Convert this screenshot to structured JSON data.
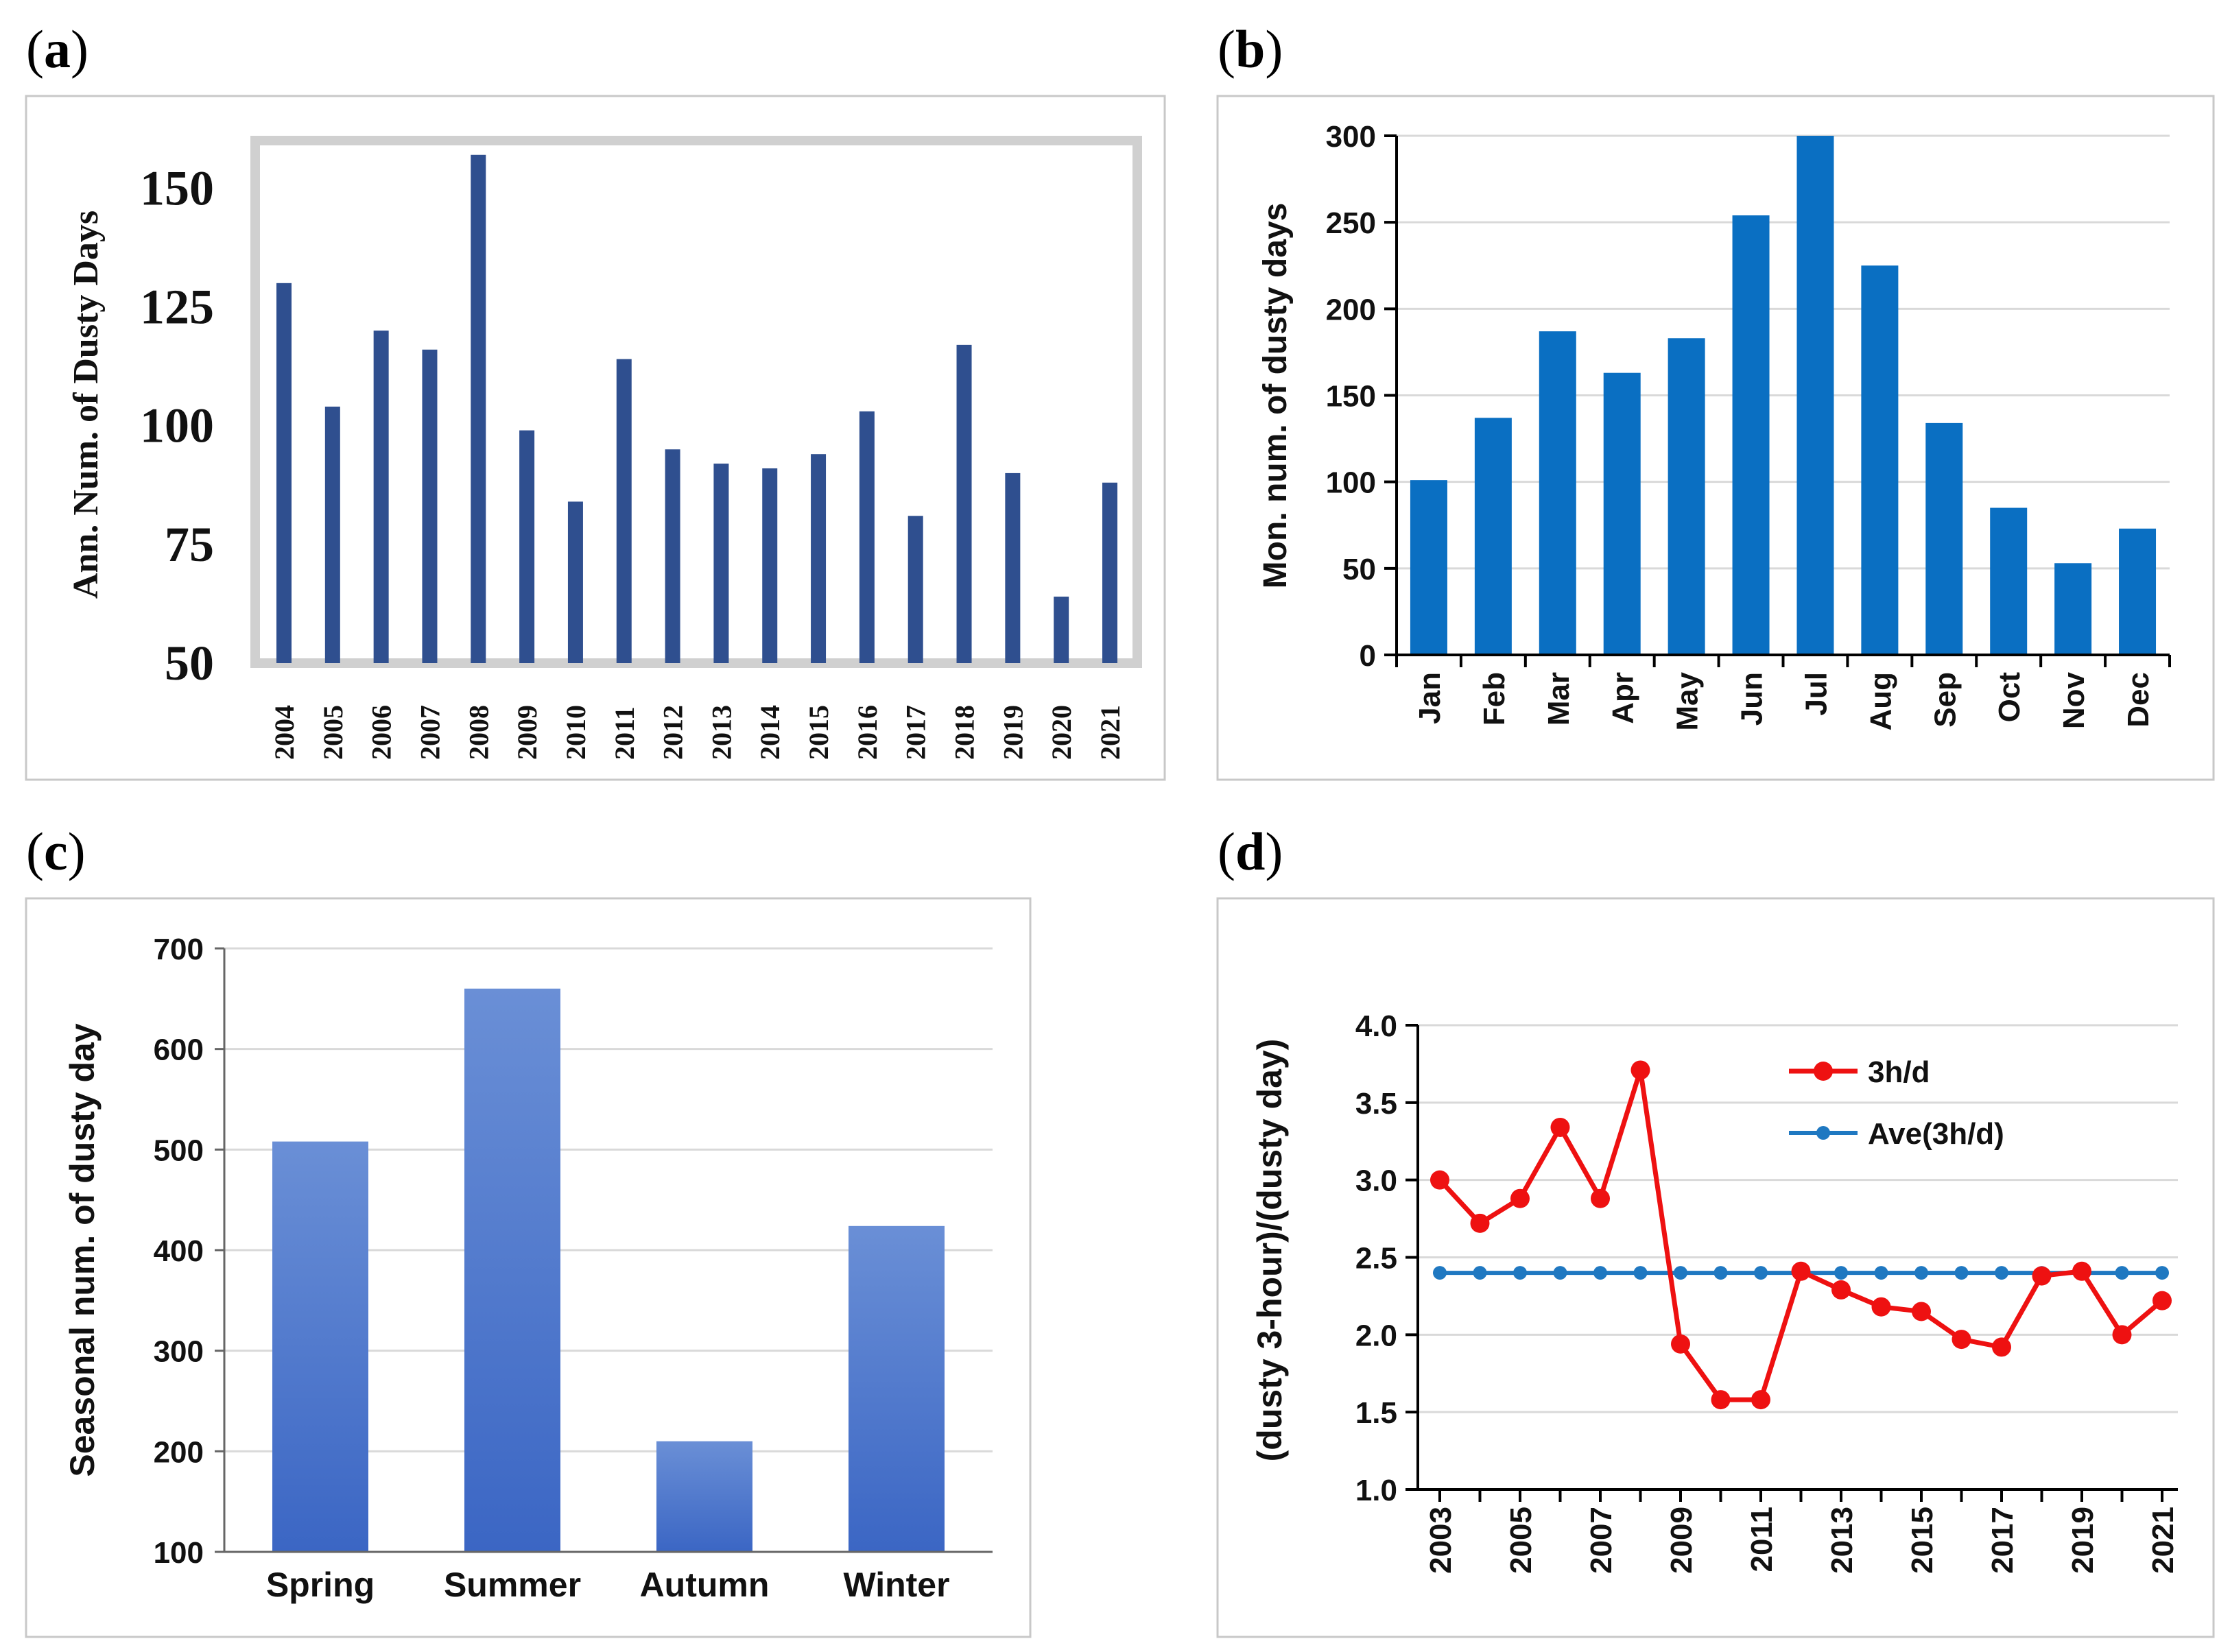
{
  "panels": {
    "a": {
      "label_open": "(",
      "label_letter": "a",
      "label_close": ")"
    },
    "b": {
      "label_open": "(",
      "label_letter": "b",
      "label_close": ")"
    },
    "c": {
      "label_open": "(",
      "label_letter": "c",
      "label_close": ")"
    },
    "d": {
      "label_open": "(",
      "label_letter": "d",
      "label_close": ")"
    }
  },
  "colors": {
    "bar_a": "#2f4f8f",
    "bar_b": "#0a6fc2",
    "bar_c_top": "#6a8fd6",
    "bar_c_bottom": "#3b66c4",
    "line_3hd": "#ee1111",
    "line_ave": "#1f78c1",
    "frame_a": "#d0d0d0",
    "grid": "#d9d9d9",
    "border": "#c8c8c8"
  },
  "chart_data": [
    {
      "id": "a",
      "type": "bar",
      "title": "",
      "xlabel": "",
      "ylabel": "Ann. Num. of Dusty Days",
      "ylim": [
        50,
        160
      ],
      "yticks": [
        "50",
        "75",
        "100",
        "125",
        "150"
      ],
      "categories": [
        "2004",
        "2005",
        "2006",
        "2007",
        "2008",
        "2009",
        "2010",
        "2011",
        "2012",
        "2013",
        "2014",
        "2015",
        "2016",
        "2017",
        "2018",
        "2019",
        "2020",
        "2021"
      ],
      "values": [
        130,
        104,
        120,
        116,
        157,
        99,
        84,
        114,
        95,
        92,
        91,
        94,
        103,
        81,
        117,
        90,
        64,
        88
      ]
    },
    {
      "id": "b",
      "type": "bar",
      "title": "",
      "xlabel": "",
      "ylabel": "Mon. num. of dusty days",
      "ylim": [
        0,
        300
      ],
      "yticks": [
        "0",
        "50",
        "100",
        "150",
        "200",
        "250",
        "300"
      ],
      "grid": true,
      "categories": [
        "Jan",
        "Feb",
        "Mar",
        "Apr",
        "May",
        "Jun",
        "Jul",
        "Aug",
        "Sep",
        "Oct",
        "Nov",
        "Dec"
      ],
      "values": [
        101,
        137,
        187,
        163,
        183,
        254,
        300,
        225,
        134,
        85,
        53,
        73
      ]
    },
    {
      "id": "c",
      "type": "bar",
      "title": "",
      "xlabel": "",
      "ylabel": "Seasonal num. of dusty day",
      "ylim": [
        100,
        700
      ],
      "yticks": [
        "100",
        "200",
        "300",
        "400",
        "500",
        "600",
        "700"
      ],
      "grid": true,
      "categories": [
        "Spring",
        "Summer",
        "Autumn",
        "Winter"
      ],
      "values": [
        508,
        660,
        210,
        424
      ]
    },
    {
      "id": "d",
      "type": "line",
      "title": "",
      "xlabel": "",
      "ylabel": "(dusty 3-hour)/(dusty day)",
      "ylim": [
        1.0,
        4.0
      ],
      "yticks": [
        "1.0",
        "1.5",
        "2.0",
        "2.5",
        "3.0",
        "3.5",
        "4.0"
      ],
      "xticks": [
        "2003",
        "2005",
        "2007",
        "2009",
        "2011",
        "2013",
        "2015",
        "2017",
        "2019",
        "2021"
      ],
      "grid": true,
      "legend": "top-right inside",
      "x": [
        2003,
        2004,
        2005,
        2006,
        2007,
        2008,
        2009,
        2010,
        2011,
        2012,
        2013,
        2014,
        2015,
        2016,
        2017,
        2018,
        2019,
        2020,
        2021
      ],
      "series": [
        {
          "name": "3h/d",
          "values": [
            3.0,
            2.72,
            2.88,
            3.34,
            2.88,
            3.71,
            1.94,
            1.58,
            1.58,
            2.41,
            2.29,
            2.18,
            2.15,
            1.97,
            1.92,
            2.38,
            2.41,
            2.0,
            2.22
          ]
        },
        {
          "name": "Ave(3h/d)",
          "values": [
            2.4,
            2.4,
            2.4,
            2.4,
            2.4,
            2.4,
            2.4,
            2.4,
            2.4,
            2.4,
            2.4,
            2.4,
            2.4,
            2.4,
            2.4,
            2.4,
            2.4,
            2.4,
            2.4
          ]
        }
      ]
    }
  ]
}
